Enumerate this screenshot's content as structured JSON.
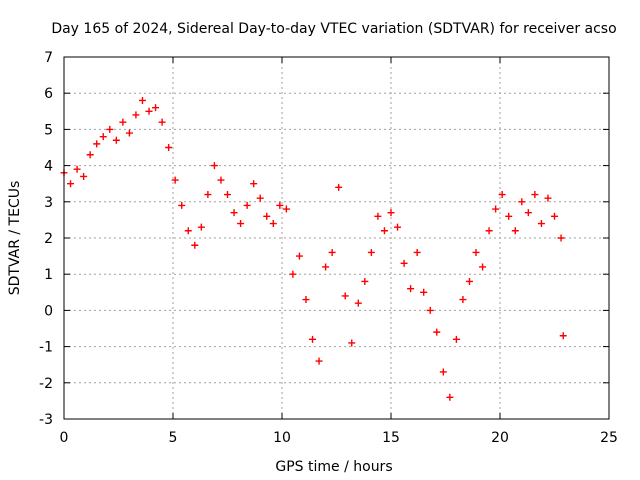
{
  "chart_data": {
    "type": "scatter",
    "title": "Day 165 of 2024, Sidereal Day-to-day VTEC variation (SDTVAR) for receiver acso",
    "xlabel": "GPS time / hours",
    "ylabel": "SDTVAR / TECUs",
    "xlim": [
      0,
      25
    ],
    "ylim": [
      -3,
      7
    ],
    "xticks": [
      0,
      5,
      10,
      15,
      20,
      25
    ],
    "yticks": [
      -3,
      -2,
      -1,
      0,
      1,
      2,
      3,
      4,
      5,
      6,
      7
    ],
    "grid": true,
    "marker": "+",
    "series": [
      {
        "name": "SDTVAR",
        "color": "#ff0000",
        "x": [
          0.0,
          0.3,
          0.6,
          0.9,
          1.2,
          1.5,
          1.8,
          2.1,
          2.4,
          2.7,
          3.0,
          3.3,
          3.6,
          3.9,
          4.2,
          4.5,
          4.8,
          5.1,
          5.4,
          5.7,
          6.0,
          6.3,
          6.6,
          6.9,
          7.2,
          7.5,
          7.8,
          8.1,
          8.4,
          8.7,
          9.0,
          9.3,
          9.6,
          9.9,
          10.2,
          10.5,
          10.8,
          11.1,
          11.4,
          11.7,
          12.0,
          12.3,
          12.6,
          12.9,
          13.2,
          13.5,
          13.8,
          14.1,
          14.4,
          14.7,
          15.0,
          15.3,
          15.6,
          15.9,
          16.2,
          16.5,
          16.8,
          17.1,
          17.4,
          17.7,
          18.0,
          18.3,
          18.6,
          18.9,
          19.2,
          19.5,
          19.8,
          20.1,
          20.4,
          20.7,
          21.0,
          21.3,
          21.6,
          21.9,
          22.2,
          22.5,
          22.8,
          22.9
        ],
        "y": [
          3.8,
          3.5,
          3.9,
          3.7,
          4.3,
          4.6,
          4.8,
          5.0,
          4.7,
          5.2,
          4.9,
          5.4,
          5.8,
          5.5,
          5.6,
          5.2,
          4.5,
          3.6,
          2.9,
          2.2,
          1.8,
          2.3,
          3.2,
          4.0,
          3.6,
          3.2,
          2.7,
          2.4,
          2.9,
          3.5,
          3.1,
          2.6,
          2.4,
          2.9,
          2.8,
          1.0,
          1.5,
          0.3,
          -0.8,
          -1.4,
          1.2,
          1.6,
          3.4,
          0.4,
          -0.9,
          0.2,
          0.8,
          1.6,
          2.6,
          2.2,
          2.7,
          2.3,
          1.3,
          0.6,
          1.6,
          0.5,
          0.0,
          -0.6,
          -1.7,
          -2.4,
          -0.8,
          0.3,
          0.8,
          1.6,
          1.2,
          2.2,
          2.8,
          3.2,
          2.6,
          2.2,
          3.0,
          2.7,
          3.2,
          2.4,
          3.1,
          2.6,
          2.0,
          -0.7
        ]
      }
    ]
  }
}
